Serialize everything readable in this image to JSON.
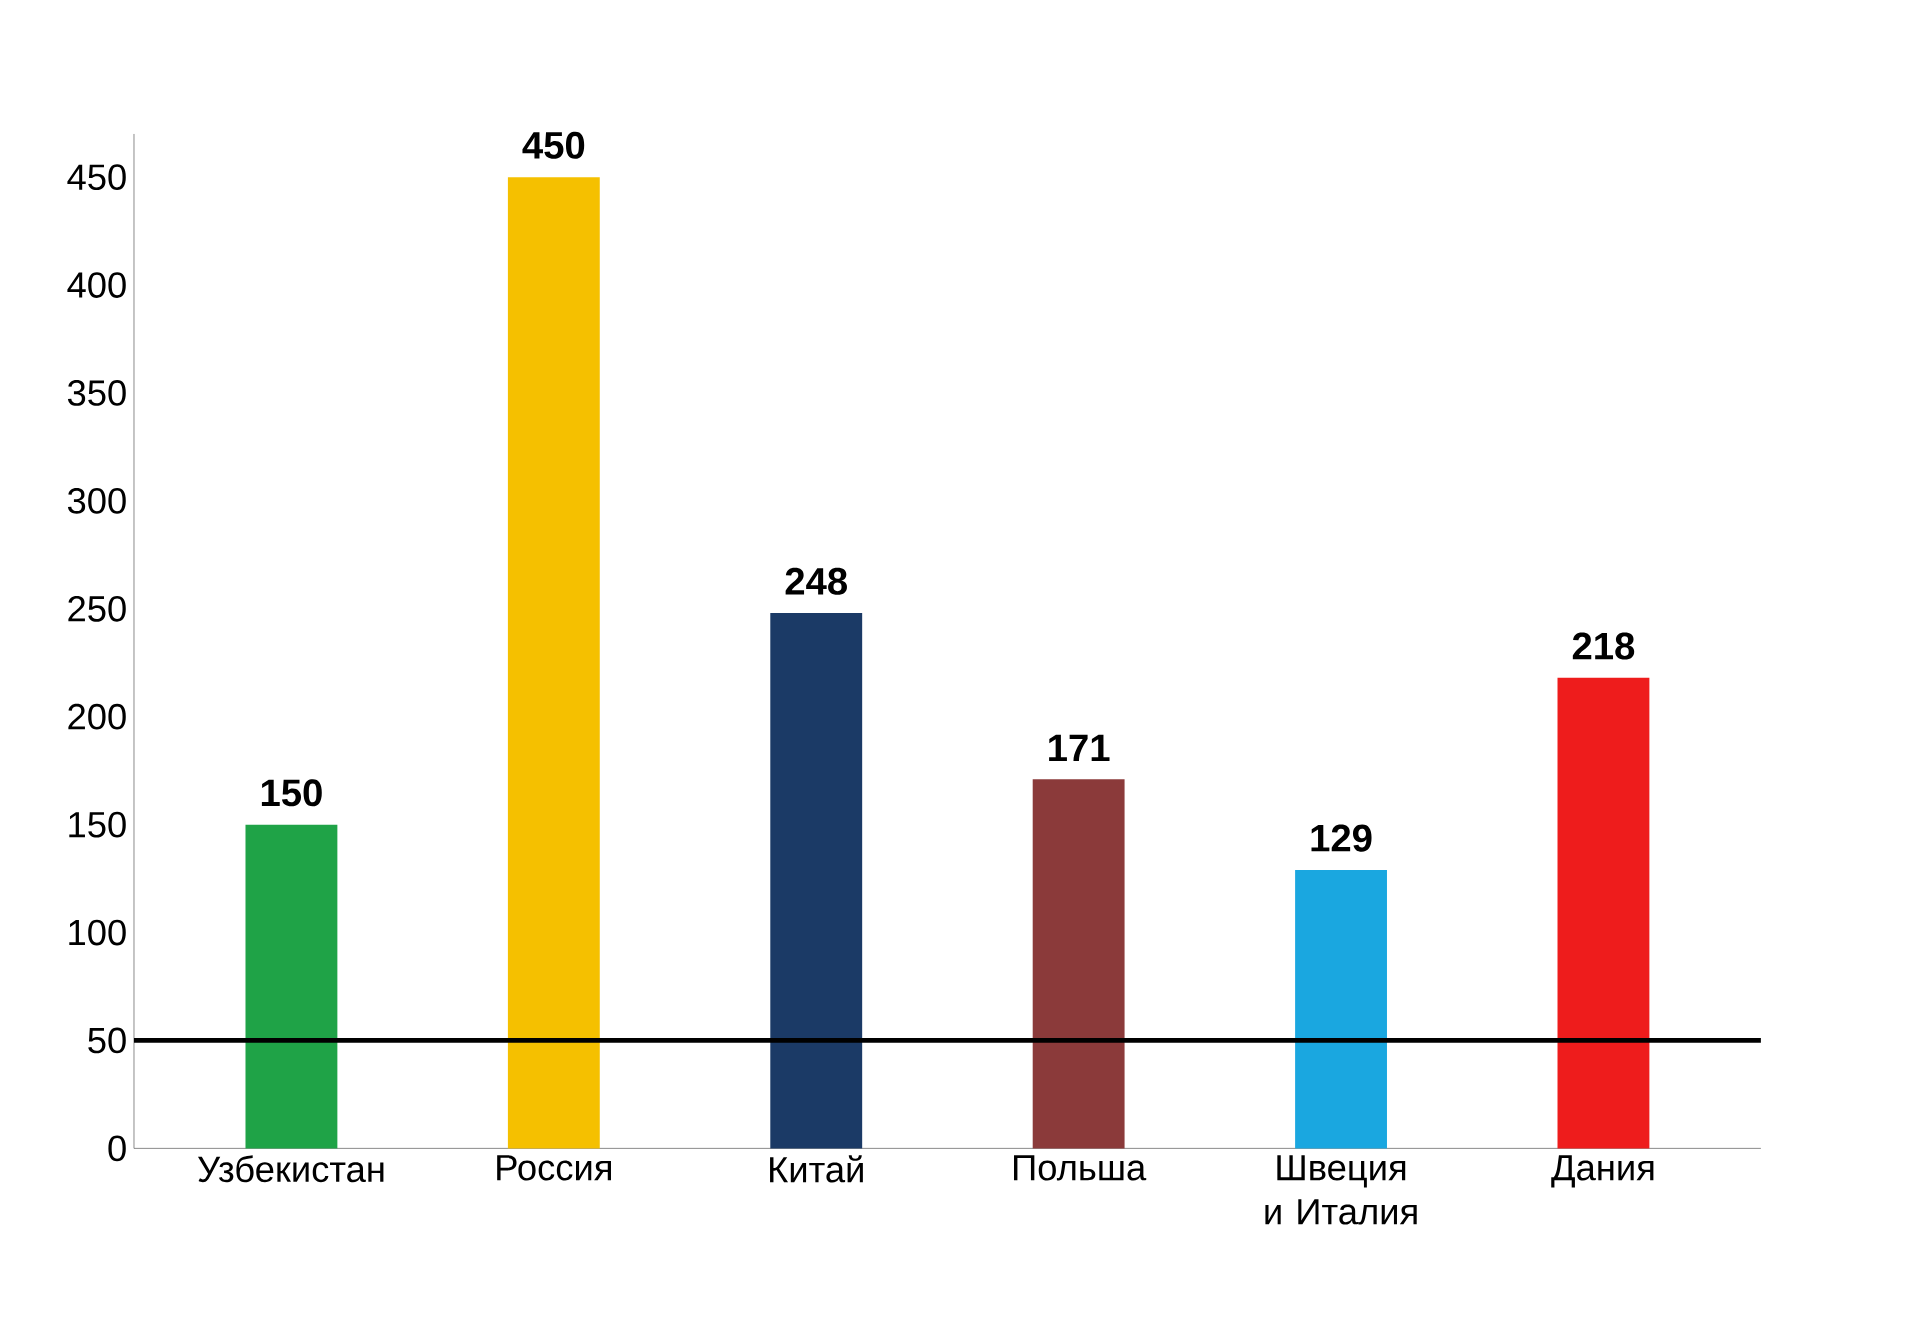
{
  "chart_data": {
    "type": "bar",
    "categories": [
      "Узбекистан",
      "Россия",
      "Китай",
      "Польша",
      "Швеция и Италия",
      "Дания"
    ],
    "values": [
      150,
      450,
      248,
      171,
      129,
      218
    ],
    "colors": [
      "#1fa347",
      "#f5c000",
      "#1b3a66",
      "#8b3a3a",
      "#1aa7e0",
      "#ee1c1c"
    ],
    "ylim": [
      0,
      470
    ],
    "yticks": [
      0,
      50,
      100,
      150,
      200,
      250,
      300,
      350,
      400,
      450
    ],
    "data_labels": true,
    "grid": false,
    "ref_lines": [
      {
        "axis": "y",
        "value": 50,
        "color": "#000000"
      }
    ]
  }
}
